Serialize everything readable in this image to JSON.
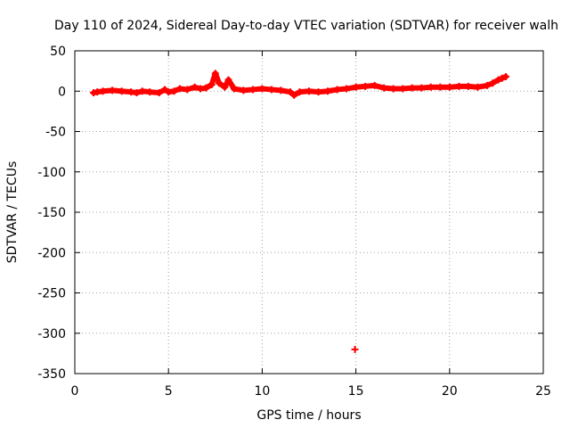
{
  "chart_data": {
    "type": "scatter",
    "title": "Day 110 of 2024, Sidereal Day-to-day VTEC variation (SDTVAR) for receiver walh",
    "xlabel": "GPS time / hours",
    "ylabel": "SDTVAR / TECUs",
    "xlim": [
      0,
      25
    ],
    "ylim": [
      -350,
      50
    ],
    "xticks": [
      0,
      5,
      10,
      15,
      20,
      25
    ],
    "yticks": [
      50,
      0,
      -50,
      -100,
      -150,
      -200,
      -250,
      -300,
      -350
    ],
    "grid": true,
    "series": [
      {
        "name": "SDTVAR",
        "color": "#ff0000",
        "marker": "plus",
        "x": [
          1.0,
          1.2,
          1.5,
          2.0,
          2.5,
          3.0,
          3.3,
          3.6,
          4.0,
          4.5,
          4.8,
          5.0,
          5.3,
          5.6,
          6.0,
          6.4,
          6.7,
          7.0,
          7.3,
          7.5,
          7.7,
          8.0,
          8.2,
          8.5,
          9.0,
          9.5,
          10.0,
          10.5,
          11.0,
          11.5,
          11.7,
          12.0,
          12.5,
          13.0,
          13.5,
          14.0,
          14.5,
          15.0,
          15.5,
          16.0,
          16.5,
          17.0,
          17.5,
          18.0,
          18.5,
          19.0,
          19.5,
          20.0,
          20.5,
          21.0,
          21.5,
          22.0,
          22.3,
          22.6,
          22.8,
          23.0,
          14.95
        ],
        "y": [
          -2,
          -1,
          0,
          1,
          0,
          -1,
          -2,
          0,
          -1,
          -2,
          2,
          -1,
          0,
          3,
          2,
          5,
          3,
          4,
          8,
          22,
          10,
          5,
          14,
          3,
          1,
          2,
          3,
          2,
          1,
          -1,
          -5,
          -1,
          0,
          -1,
          0,
          2,
          3,
          5,
          6,
          7,
          4,
          3,
          3,
          4,
          4,
          5,
          5,
          5,
          6,
          6,
          5,
          7,
          10,
          14,
          16,
          18,
          -320
        ]
      }
    ]
  }
}
